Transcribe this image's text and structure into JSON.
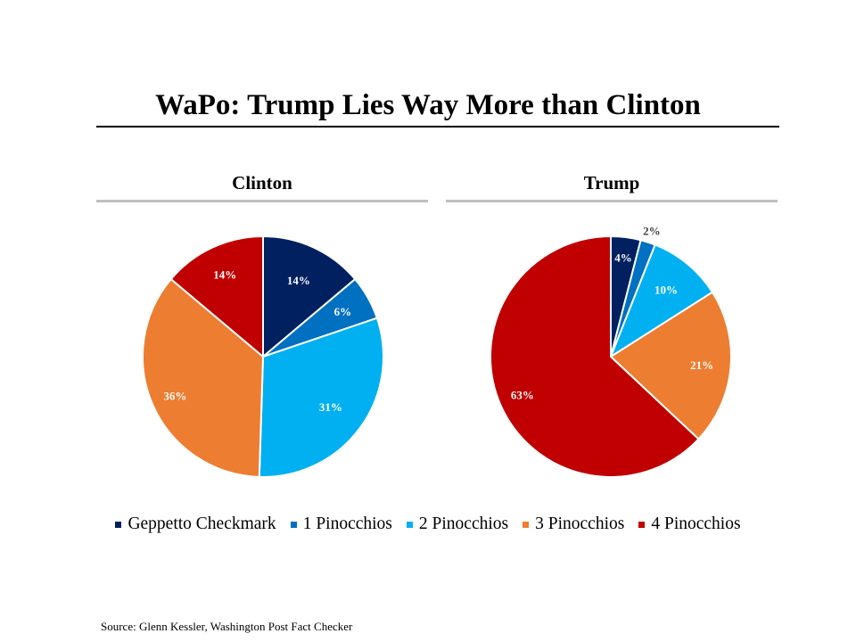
{
  "title": "WaPo: Trump Lies Way More than Clinton",
  "source": "Source: Glenn Kessler, Washington Post Fact Checker",
  "legend": [
    {
      "label": "Geppetto Checkmark",
      "color": "#002060"
    },
    {
      "label": "1 Pinocchios",
      "color": "#0070c0"
    },
    {
      "label": "2 Pinocchios",
      "color": "#00b0f0"
    },
    {
      "label": "3 Pinocchios",
      "color": "#ed7d31"
    },
    {
      "label": "4 Pinocchios",
      "color": "#c00000"
    }
  ],
  "chart_data": [
    {
      "type": "pie",
      "title": "Clinton",
      "categories": [
        "Geppetto Checkmark",
        "1 Pinocchios",
        "2 Pinocchios",
        "3 Pinocchios",
        "4 Pinocchios"
      ],
      "values": [
        14,
        6,
        31,
        36,
        14
      ],
      "labels": [
        "14%",
        "6%",
        "31%",
        "36%",
        "14%"
      ],
      "colors": [
        "#002060",
        "#0070c0",
        "#00b0f0",
        "#ed7d31",
        "#c00000"
      ]
    },
    {
      "type": "pie",
      "title": "Trump",
      "categories": [
        "Geppetto Checkmark",
        "1 Pinocchios",
        "2 Pinocchios",
        "3 Pinocchios",
        "4 Pinocchios"
      ],
      "values": [
        4,
        2,
        10,
        21,
        63
      ],
      "labels": [
        "4%",
        "2%",
        "10%",
        "21%",
        "63%"
      ],
      "colors": [
        "#002060",
        "#0070c0",
        "#00b0f0",
        "#ed7d31",
        "#c00000"
      ]
    }
  ]
}
